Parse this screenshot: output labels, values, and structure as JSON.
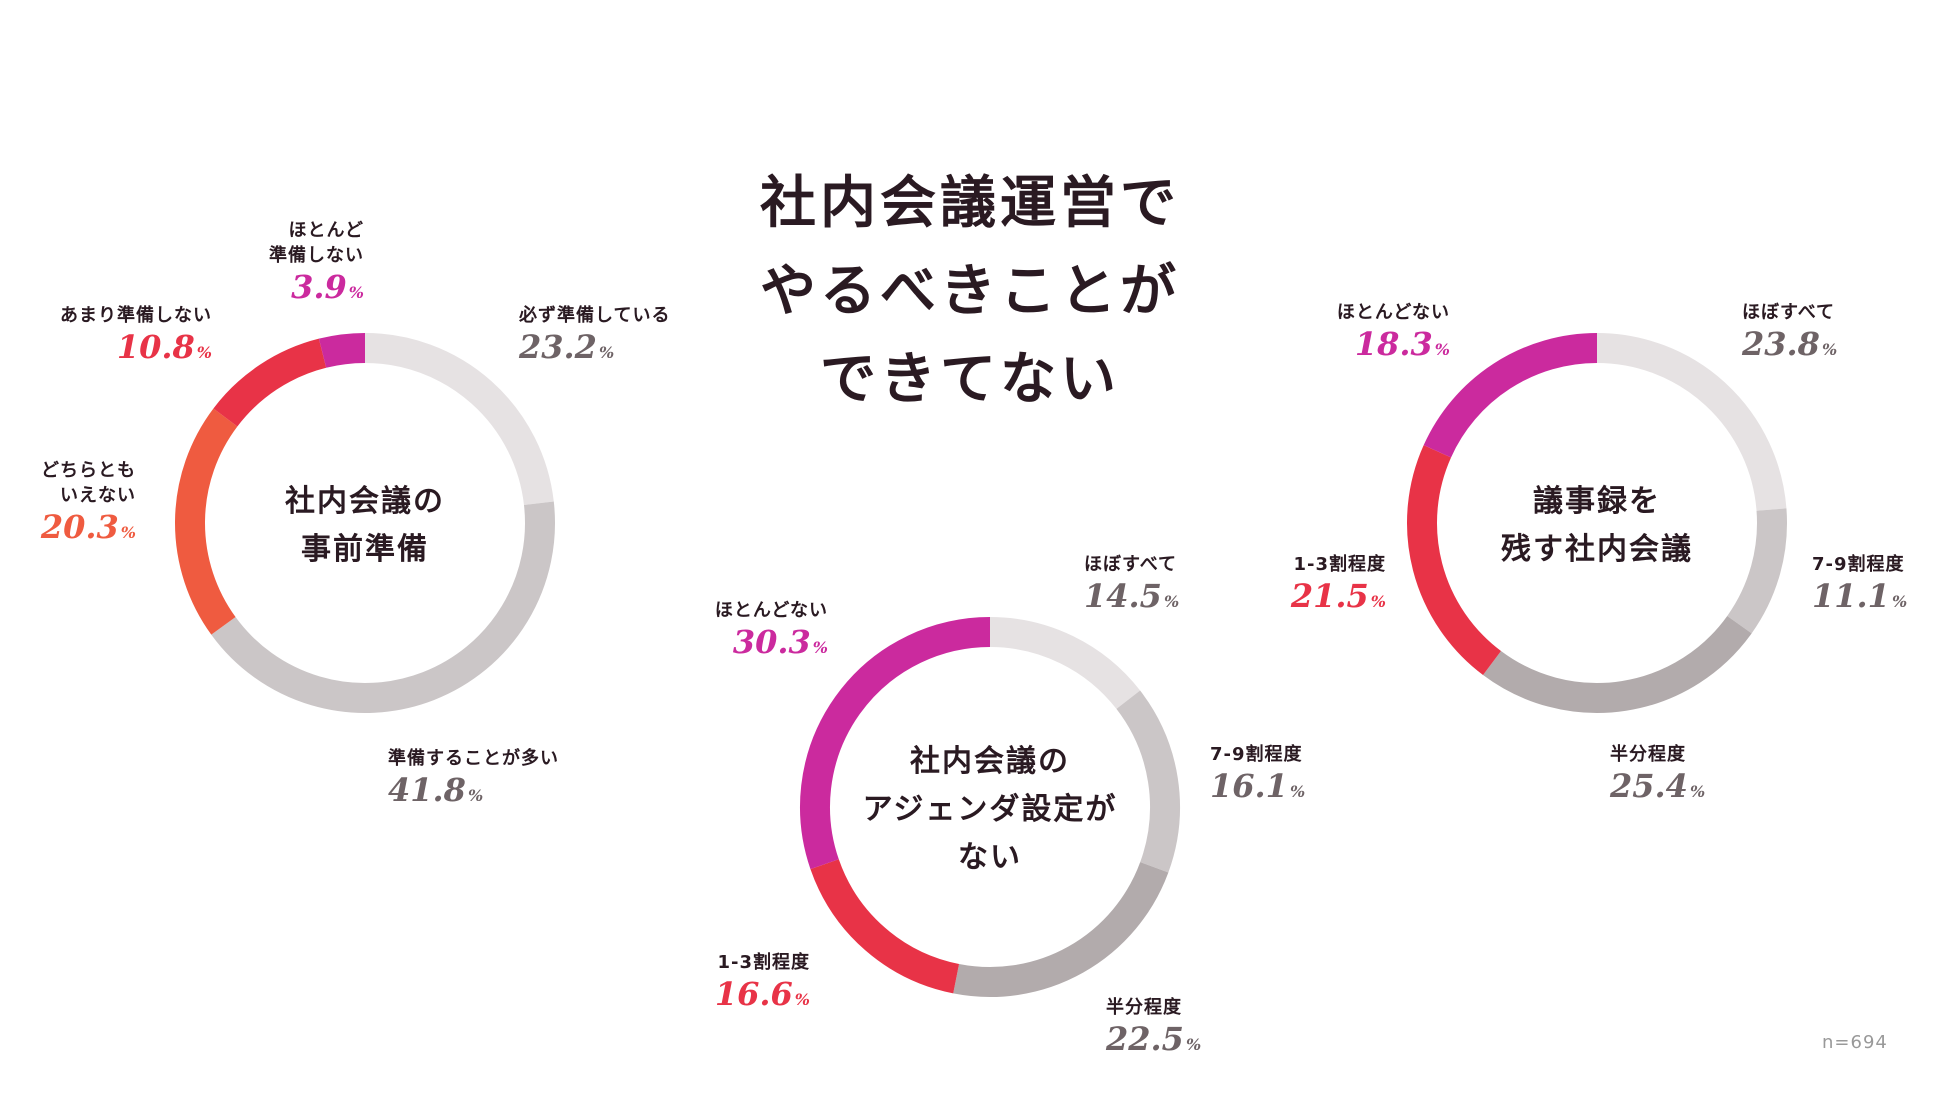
{
  "title_lines": [
    "社内会議運営で",
    "やるべきことが",
    "できてない"
  ],
  "sample_size": "n=694",
  "percent_suffix": "%",
  "chart_data": [
    {
      "type": "pie",
      "variant": "donut",
      "title_lines": [
        "社内会議の",
        "事前準備"
      ],
      "slices": [
        {
          "label": "必ず準備している",
          "value": 23.2,
          "display": "23.2",
          "color": "#e6e2e3"
        },
        {
          "label": "準備することが多い",
          "value": 41.8,
          "display": "41.8",
          "color": "#cbc6c7"
        },
        {
          "label": "どちらとも いえない",
          "label_lines": [
            "どちらとも",
            "いえない"
          ],
          "value": 20.3,
          "display": "20.3",
          "color": "#ef5b40"
        },
        {
          "label": "あまり準備しない",
          "value": 10.8,
          "display": "10.8",
          "color": "#e83347"
        },
        {
          "label": "ほとんど 準備しない",
          "label_lines": [
            "ほとんど",
            "準備しない"
          ],
          "value": 3.9,
          "display": "3.9",
          "color": "#cb2a9e"
        }
      ]
    },
    {
      "type": "pie",
      "variant": "donut",
      "title_lines": [
        "社内会議の",
        "アジェンダ設定が",
        "ない"
      ],
      "slices": [
        {
          "label": "ほぼすべて",
          "value": 14.5,
          "display": "14.5",
          "color": "#e6e2e3"
        },
        {
          "label": "7-9割程度",
          "value": 16.1,
          "display": "16.1",
          "color": "#cbc6c7"
        },
        {
          "label": "半分程度",
          "value": 22.5,
          "display": "22.5",
          "color": "#b2abac"
        },
        {
          "label": "1-3割程度",
          "value": 16.6,
          "display": "16.6",
          "color": "#e83347"
        },
        {
          "label": "ほとんどない",
          "value": 30.3,
          "display": "30.3",
          "color": "#cb2a9e"
        }
      ]
    },
    {
      "type": "pie",
      "variant": "donut",
      "title_lines": [
        "議事録を",
        "残す社内会議"
      ],
      "slices": [
        {
          "label": "ほぼすべて",
          "value": 23.8,
          "display": "23.8",
          "color": "#e6e2e3"
        },
        {
          "label": "7-9割程度",
          "value": 11.1,
          "display": "11.1",
          "color": "#cbc6c7"
        },
        {
          "label": "半分程度",
          "value": 25.4,
          "display": "25.4",
          "color": "#b2abac"
        },
        {
          "label": "1-3割程度",
          "value": 21.5,
          "display": "21.5",
          "color": "#e83347"
        },
        {
          "label": "ほとんどない",
          "value": 18.3,
          "display": "18.3",
          "color": "#cb2a9e"
        }
      ]
    }
  ]
}
